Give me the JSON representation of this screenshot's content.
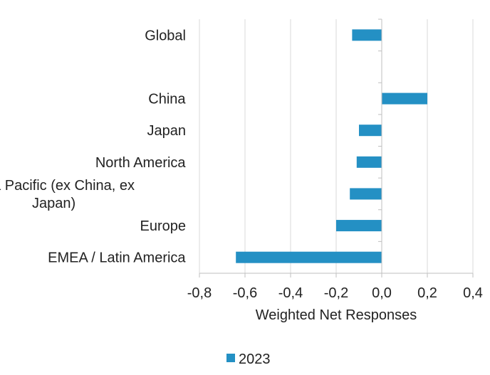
{
  "chart_data": {
    "type": "bar",
    "orientation": "horizontal",
    "categories": [
      "Global",
      "",
      "China",
      "Japan",
      "North America",
      "Asia Pacific (ex China, ex Japan)",
      "Europe",
      "EMEA / Latin America"
    ],
    "category_label_lines": [
      [
        "Global"
      ],
      [
        ""
      ],
      [
        "China"
      ],
      [
        "Japan"
      ],
      [
        "North America"
      ],
      [
        "Asia Pacific (ex China, ex",
        "Japan)"
      ],
      [
        "Europe"
      ],
      [
        "EMEA / Latin America"
      ]
    ],
    "series": [
      {
        "name": "2023",
        "values": [
          -0.13,
          null,
          0.2,
          -0.1,
          -0.11,
          -0.14,
          -0.2,
          -0.64
        ]
      }
    ],
    "xlabel": "Weighted Net Responses",
    "xlim": [
      -0.8,
      0.4
    ],
    "xticks": [
      -0.8,
      -0.6,
      -0.4,
      -0.2,
      0.0,
      0.2,
      0.4
    ],
    "xtick_labels": [
      "-0,8",
      "-0,6",
      "-0,4",
      "-0,2",
      "0,0",
      "0,2",
      "0,4"
    ],
    "grid": true,
    "legend_position": "bottom",
    "colors": {
      "bar": "#2490c4",
      "grid": "#d9d9d9",
      "axis": "#bfbfbf"
    }
  }
}
